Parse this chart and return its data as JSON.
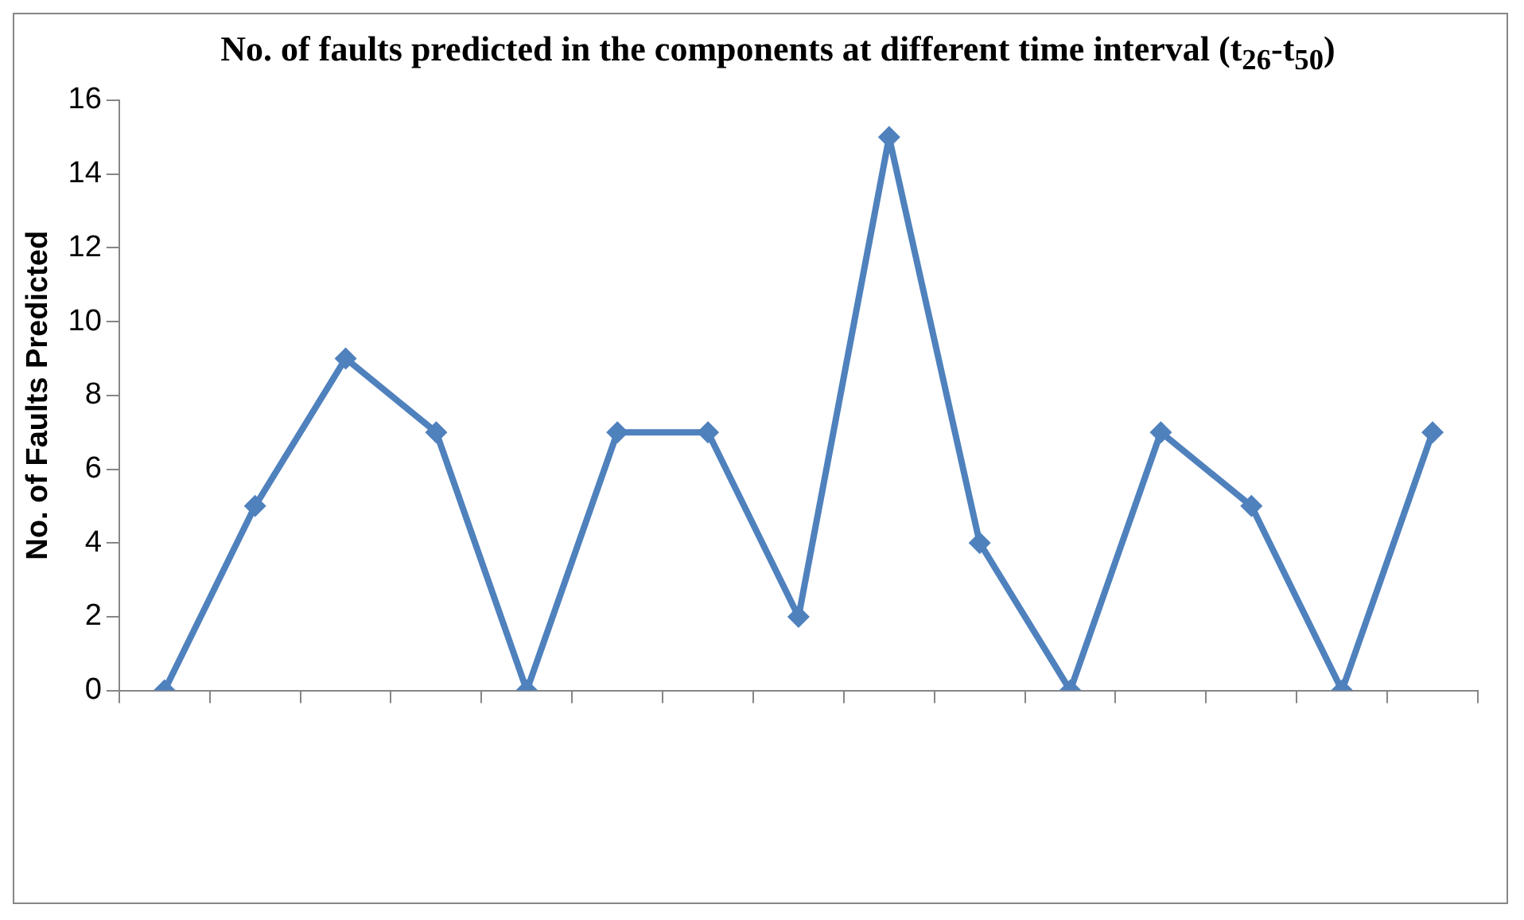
{
  "chart_data": {
    "type": "line",
    "title": "No. of faults predicted  in the components  at different time interval (t$_{26}$-t$_{50}$)",
    "ylabel": "No. of Faults Predicted",
    "categories": [
      null,
      null,
      null,
      null,
      null,
      null,
      null,
      null,
      null,
      null,
      null,
      null,
      null,
      null,
      null
    ],
    "series": [
      {
        "color": "#4f81bd",
        "values": [
          0,
          5,
          9,
          7,
          0,
          7,
          7,
          2,
          15,
          4,
          0,
          7,
          5,
          0,
          7
        ]
      }
    ],
    "ylim": [
      0,
      16
    ],
    "yticks": [
      0,
      2,
      4,
      6,
      8,
      10,
      12,
      14,
      16
    ],
    "grid": false,
    "legend": false,
    "marker": "diamond",
    "line_style": "solid"
  }
}
